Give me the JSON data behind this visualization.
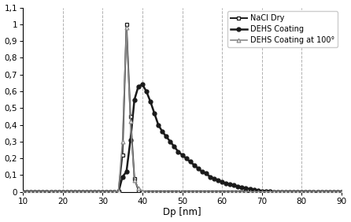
{
  "title": "",
  "xlabel": "Dp [nm]",
  "ylabel": "",
  "xlim": [
    10,
    90
  ],
  "ylim": [
    0,
    1.1
  ],
  "yticks": [
    0,
    0.1,
    0.2,
    0.3,
    0.4,
    0.5,
    0.6,
    0.7,
    0.8,
    0.9,
    1.0,
    1.1
  ],
  "xticks": [
    10,
    20,
    30,
    40,
    50,
    60,
    70,
    80,
    90
  ],
  "vlines": [
    20,
    30,
    40,
    50,
    60,
    70,
    80
  ],
  "nacl_dry": {
    "x": [
      10,
      11,
      12,
      13,
      14,
      15,
      16,
      17,
      18,
      19,
      20,
      21,
      22,
      23,
      24,
      25,
      26,
      27,
      28,
      29,
      30,
      31,
      32,
      33,
      34,
      35,
      36,
      37,
      38,
      39,
      40,
      41,
      42,
      43,
      44,
      45,
      46,
      47,
      48,
      49,
      50,
      51,
      52,
      53,
      54,
      55,
      56,
      57,
      58,
      59,
      60,
      61,
      62,
      63,
      64,
      65,
      66,
      67,
      68,
      69,
      70,
      71,
      72,
      73,
      74,
      75,
      76,
      77,
      78,
      79,
      80,
      81,
      82,
      83,
      84,
      85,
      86,
      87,
      88,
      89,
      90
    ],
    "y": [
      0,
      0,
      0,
      0,
      0,
      0,
      0,
      0,
      0,
      0,
      0,
      0,
      0,
      0,
      0,
      0,
      0,
      0,
      0,
      0,
      0,
      0,
      0,
      0,
      0.005,
      0.22,
      1.0,
      0.45,
      0.08,
      0.01,
      0.0,
      0,
      0,
      0,
      0,
      0,
      0,
      0,
      0,
      0,
      0,
      0,
      0,
      0,
      0,
      0,
      0,
      0,
      0,
      0,
      0,
      0,
      0,
      0,
      0,
      0,
      0,
      0,
      0,
      0,
      0,
      0,
      0,
      0,
      0,
      0,
      0,
      0,
      0,
      0,
      0,
      0,
      0,
      0,
      0,
      0,
      0,
      0,
      0,
      0,
      0
    ],
    "color": "#1a1a1a",
    "marker": "s",
    "markersize": 3.5,
    "label": "NaCl Dry",
    "linewidth": 1.4
  },
  "dehs_coating": {
    "x": [
      10,
      11,
      12,
      13,
      14,
      15,
      16,
      17,
      18,
      19,
      20,
      21,
      22,
      23,
      24,
      25,
      26,
      27,
      28,
      29,
      30,
      31,
      32,
      33,
      34,
      35,
      36,
      37,
      38,
      39,
      40,
      41,
      42,
      43,
      44,
      45,
      46,
      47,
      48,
      49,
      50,
      51,
      52,
      53,
      54,
      55,
      56,
      57,
      58,
      59,
      60,
      61,
      62,
      63,
      64,
      65,
      66,
      67,
      68,
      69,
      70,
      71,
      72,
      73,
      74,
      75,
      76,
      77,
      78,
      79,
      80,
      81,
      82,
      83,
      84,
      85,
      86,
      87,
      88,
      89,
      90
    ],
    "y": [
      0,
      0,
      0,
      0,
      0,
      0,
      0,
      0,
      0,
      0,
      0,
      0,
      0,
      0,
      0,
      0,
      0,
      0,
      0,
      0,
      0,
      0,
      0,
      0,
      0,
      0.09,
      0.12,
      0.31,
      0.55,
      0.63,
      0.64,
      0.6,
      0.54,
      0.47,
      0.4,
      0.36,
      0.33,
      0.3,
      0.27,
      0.24,
      0.22,
      0.2,
      0.18,
      0.16,
      0.14,
      0.12,
      0.11,
      0.09,
      0.08,
      0.07,
      0.06,
      0.05,
      0.045,
      0.04,
      0.033,
      0.027,
      0.022,
      0.017,
      0.013,
      0.009,
      0.005,
      0.003,
      0.002,
      0.001,
      0,
      0,
      0,
      0,
      0,
      0,
      0,
      0,
      0,
      0,
      0,
      0,
      0,
      0,
      0,
      0,
      0
    ],
    "color": "#1a1a1a",
    "marker": "o",
    "markersize": 3.5,
    "label": "DEHS Coating",
    "linewidth": 1.8
  },
  "dehs_100": {
    "x": [
      10,
      11,
      12,
      13,
      14,
      15,
      16,
      17,
      18,
      19,
      20,
      21,
      22,
      23,
      24,
      25,
      26,
      27,
      28,
      29,
      30,
      31,
      32,
      33,
      34,
      35,
      36,
      37,
      38,
      39,
      40,
      41,
      42,
      43,
      44,
      45,
      46,
      47,
      48,
      49,
      50,
      51,
      52,
      53,
      54,
      55,
      56,
      57,
      58,
      59,
      60,
      61,
      62,
      63,
      64,
      65,
      66,
      67,
      68,
      69,
      70,
      71,
      72,
      73,
      74,
      75,
      76,
      77,
      78,
      79,
      80,
      81,
      82,
      83,
      84,
      85,
      86,
      87,
      88,
      89,
      90
    ],
    "y": [
      0,
      0,
      0,
      0,
      0,
      0,
      0,
      0,
      0,
      0,
      0,
      0,
      0,
      0,
      0,
      0,
      0,
      0,
      0,
      0,
      0,
      0,
      0,
      0,
      0.005,
      0.3,
      0.98,
      0.42,
      0.07,
      0.02,
      0.005,
      0,
      0,
      0,
      0,
      0,
      0,
      0,
      0,
      0,
      0,
      0,
      0,
      0,
      0,
      0,
      0,
      0,
      0,
      0,
      0,
      0,
      0,
      0,
      0,
      0,
      0,
      0,
      0,
      0,
      0,
      0,
      0,
      0,
      0,
      0,
      0,
      0,
      0,
      0,
      0,
      0,
      0,
      0,
      0,
      0,
      0,
      0,
      0,
      0,
      0
    ],
    "color": "#888888",
    "marker": "^",
    "markersize": 3.5,
    "label": "DEHS Coating at 100°",
    "linewidth": 1.2
  },
  "background_color": "#ffffff",
  "grid_color": "#b0b0b0",
  "figsize": [
    4.46,
    2.82
  ],
  "dpi": 100
}
